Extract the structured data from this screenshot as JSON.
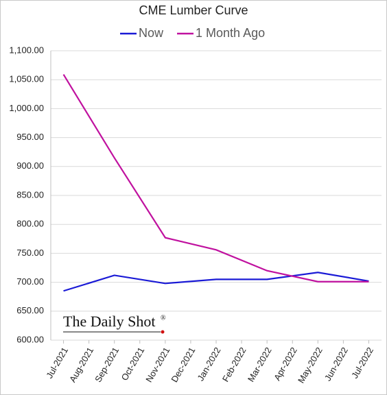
{
  "chart_data": {
    "type": "line",
    "title": "CME Lumber Curve",
    "categories": [
      "Jul-2021",
      "Aug-2021",
      "Sep-2021",
      "Oct-2021",
      "Nov-2021",
      "Dec-2021",
      "Jan-2022",
      "Feb-2022",
      "Mar-2022",
      "Apr-2022",
      "May-2022",
      "Jun-2022",
      "Jul-2022"
    ],
    "series": [
      {
        "name": "Now",
        "color": "#1a1ad6",
        "x": [
          "Jul-2021",
          "Sep-2021",
          "Nov-2021",
          "Jan-2022",
          "Mar-2022",
          "May-2022",
          "Jul-2022"
        ],
        "values": [
          685,
          712,
          698,
          705,
          705,
          717,
          702
        ]
      },
      {
        "name": "1 Month Ago",
        "color": "#c0119f",
        "x": [
          "Jul-2021",
          "Sep-2021",
          "Nov-2021",
          "Jan-2022",
          "Mar-2022",
          "May-2022",
          "Jul-2022"
        ],
        "values": [
          1059,
          915,
          777,
          756,
          720,
          701,
          701
        ]
      }
    ],
    "ylim": [
      600,
      1100
    ],
    "yticks": [
      {
        "value": 600,
        "label": "600.00"
      },
      {
        "value": 650,
        "label": "650.00"
      },
      {
        "value": 700,
        "label": "700.00"
      },
      {
        "value": 750,
        "label": "750.00"
      },
      {
        "value": 800,
        "label": "800.00"
      },
      {
        "value": 850,
        "label": "850.00"
      },
      {
        "value": 900,
        "label": "900.00"
      },
      {
        "value": 950,
        "label": "950.00"
      },
      {
        "value": 1000,
        "label": "1,000.00"
      },
      {
        "value": 1050,
        "label": "1,050.00"
      },
      {
        "value": 1100,
        "label": "1,100.00"
      }
    ],
    "grid": true,
    "legend": "top",
    "watermark": "The Daily Shot",
    "watermark_mark": "®"
  }
}
